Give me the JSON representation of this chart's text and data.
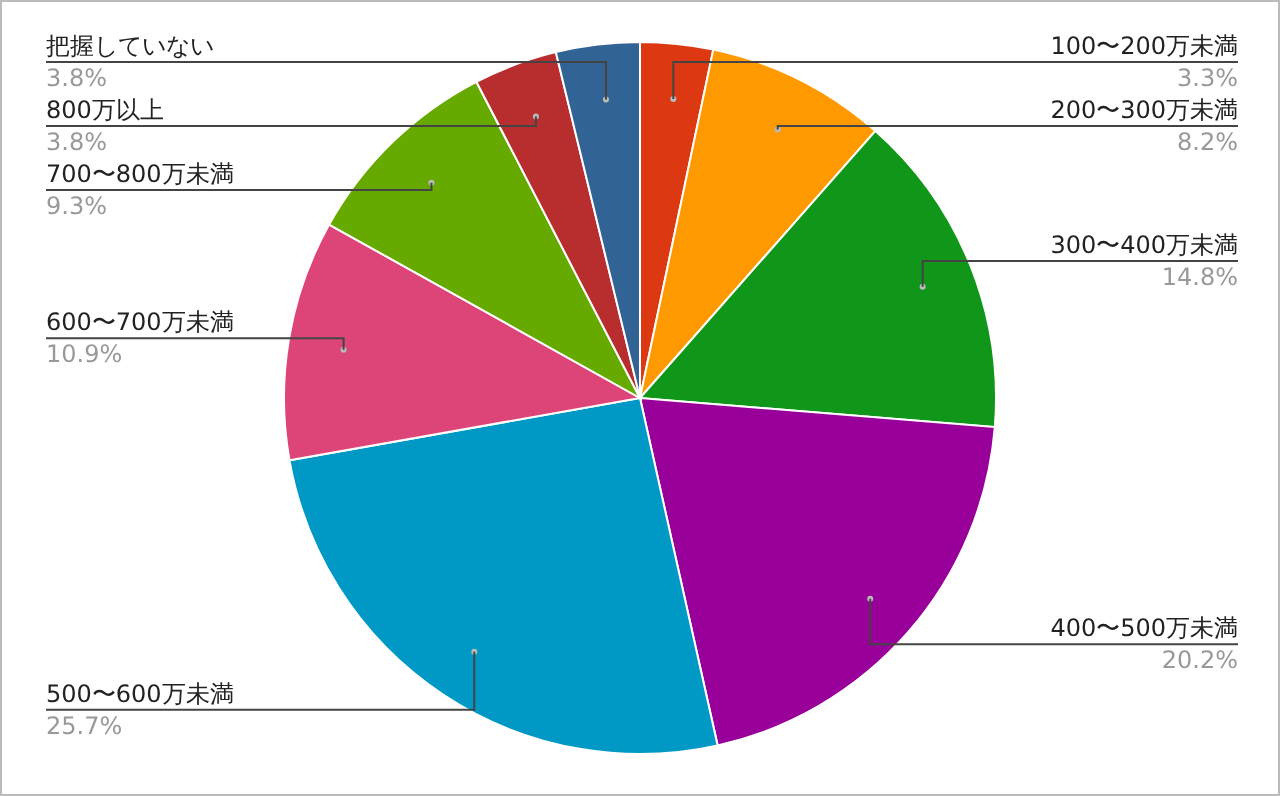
{
  "chart_data": {
    "type": "pie",
    "categories": [
      "100〜200万未満",
      "200〜300万未満",
      "300〜400万未満",
      "400〜500万未満",
      "500〜600万未満",
      "600〜700万未満",
      "700〜800万未満",
      "800万以上",
      "把握していない"
    ],
    "values": [
      3.3,
      8.2,
      14.8,
      20.2,
      25.7,
      10.9,
      9.3,
      3.8,
      3.8
    ],
    "value_labels": [
      "3.3%",
      "8.2%",
      "14.8%",
      "20.2%",
      "25.7%",
      "10.9%",
      "9.3%",
      "3.8%",
      "3.8%"
    ],
    "colors": [
      "#dc3912",
      "#ff9900",
      "#109618",
      "#990099",
      "#0099c6",
      "#dd4477",
      "#66aa00",
      "#b82e2e",
      "#316395"
    ]
  }
}
